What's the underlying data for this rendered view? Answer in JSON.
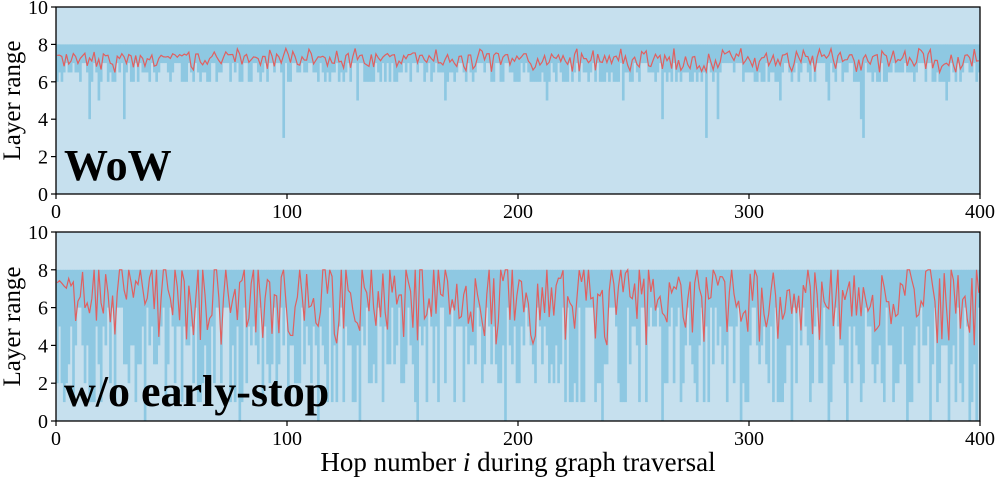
{
  "colors": {
    "full_range": "#c6e0ee",
    "active_range": "#8ec8e2",
    "mean_line": "#e06060",
    "frame": "#000000"
  },
  "xlabel_parts": {
    "before": "Hop number ",
    "italic": "i",
    "after": " during graph traversal"
  },
  "chart_data": [
    {
      "type": "area",
      "panel_label": "WoW",
      "ylabel": "Layer range",
      "xlim": [
        0,
        400
      ],
      "ylim": [
        0,
        10
      ],
      "xticks": [
        "0",
        "100",
        "200",
        "300",
        "400"
      ],
      "yticks": [
        "0",
        "2",
        "4",
        "6",
        "8",
        "10"
      ],
      "band_upper": 8,
      "typical_band_lower": [
        6,
        6.5,
        7
      ],
      "typical_mean_range": [
        6.5,
        7.5
      ],
      "dips": [
        {
          "x": 14,
          "lower": 4.0
        },
        {
          "x": 18,
          "lower": 5.0
        },
        {
          "x": 29,
          "lower": 4.0
        },
        {
          "x": 98,
          "lower": 3.0
        },
        {
          "x": 130,
          "lower": 5.0
        },
        {
          "x": 168,
          "lower": 5.0
        },
        {
          "x": 212,
          "lower": 5.0
        },
        {
          "x": 245,
          "lower": 5.0
        },
        {
          "x": 262,
          "lower": 4.0
        },
        {
          "x": 281,
          "lower": 3.0
        },
        {
          "x": 286,
          "lower": 4.0
        },
        {
          "x": 313,
          "lower": 5.0
        },
        {
          "x": 334,
          "lower": 5.0
        },
        {
          "x": 348,
          "lower": 4.0
        },
        {
          "x": 349,
          "lower": 3.0
        },
        {
          "x": 385,
          "lower": 5.0
        }
      ]
    },
    {
      "type": "area",
      "panel_label": "w/o early-stop",
      "ylabel": "Layer range",
      "xlim": [
        0,
        400
      ],
      "ylim": [
        0,
        10
      ],
      "xticks": [
        "0",
        "100",
        "200",
        "300",
        "400"
      ],
      "yticks": [
        "0",
        "2",
        "4",
        "6",
        "8",
        "10"
      ],
      "band_upper": 8,
      "typical_band_lower": [
        1,
        2,
        3,
        4,
        5,
        6
      ],
      "typical_mean_range": [
        4,
        8
      ],
      "dips": [
        {
          "x": 38,
          "lower": 0
        },
        {
          "x": 54,
          "lower": 1
        },
        {
          "x": 79,
          "lower": 0
        },
        {
          "x": 113,
          "lower": 0
        },
        {
          "x": 131,
          "lower": 0
        },
        {
          "x": 156,
          "lower": 0
        },
        {
          "x": 176,
          "lower": 1
        },
        {
          "x": 194,
          "lower": 0
        },
        {
          "x": 228,
          "lower": 1
        },
        {
          "x": 236,
          "lower": 0
        },
        {
          "x": 255,
          "lower": 1
        },
        {
          "x": 262,
          "lower": 0
        },
        {
          "x": 296,
          "lower": 0
        },
        {
          "x": 318,
          "lower": 0
        },
        {
          "x": 326,
          "lower": 1
        },
        {
          "x": 334,
          "lower": 0
        },
        {
          "x": 342,
          "lower": 0
        },
        {
          "x": 368,
          "lower": 0
        },
        {
          "x": 378,
          "lower": 0
        },
        {
          "x": 386,
          "lower": 0
        },
        {
          "x": 395,
          "lower": 0
        },
        {
          "x": 398,
          "lower": 0
        }
      ]
    }
  ]
}
